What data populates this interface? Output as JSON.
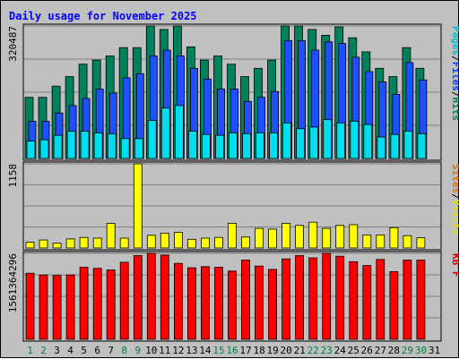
{
  "chart_data": [
    {
      "type": "bar",
      "title": "Daily usage for November 2025",
      "categories": [
        "1",
        "2",
        "3",
        "4",
        "5",
        "6",
        "7",
        "8",
        "9",
        "10",
        "11",
        "12",
        "13",
        "14",
        "15",
        "16",
        "17",
        "18",
        "19",
        "20",
        "21",
        "22",
        "23",
        "24",
        "25",
        "26",
        "27",
        "28",
        "29",
        "30",
        "31"
      ],
      "weekend_days": [
        "1",
        "2",
        "8",
        "9",
        "15",
        "16",
        "22",
        "23",
        "29",
        "30"
      ],
      "ylabel_parts": [
        {
          "text": "Pages",
          "color": "#00c0d0"
        },
        {
          "text": "Files",
          "color": "#0040ff"
        },
        {
          "text": "Hits",
          "color": "#008060"
        }
      ],
      "ymax_label": "320487",
      "ymax": 320487,
      "series": [
        {
          "name": "Hits",
          "color": "#00805c",
          "values": [
            148000,
            148000,
            175000,
            198000,
            228000,
            238000,
            248000,
            268000,
            268000,
            320487,
            312000,
            320487,
            270000,
            238000,
            248000,
            228000,
            198000,
            218000,
            238000,
            320487,
            320487,
            312000,
            298000,
            318000,
            292000,
            258000,
            218000,
            198000,
            268000,
            218000,
            0
          ]
        },
        {
          "name": "Files",
          "color": "#1e50ff",
          "values": [
            90000,
            90000,
            110000,
            128000,
            145000,
            168000,
            158000,
            195000,
            205000,
            248000,
            262000,
            248000,
            218000,
            192000,
            168000,
            168000,
            138000,
            148000,
            162000,
            285000,
            285000,
            262000,
            282000,
            278000,
            245000,
            210000,
            185000,
            155000,
            232000,
            190000,
            0
          ]
        },
        {
          "name": "Pages",
          "color": "#00ddee",
          "values": [
            42000,
            45000,
            56000,
            66000,
            66000,
            62000,
            60000,
            48000,
            48000,
            92000,
            122000,
            128000,
            66000,
            58000,
            56000,
            62000,
            60000,
            62000,
            62000,
            86000,
            72000,
            76000,
            94000,
            86000,
            90000,
            82000,
            52000,
            58000,
            66000,
            60000,
            0
          ]
        }
      ]
    },
    {
      "type": "bar",
      "ylabel_parts": [
        {
          "text": "Sites",
          "color": "#e07000"
        },
        {
          "text": "Visits",
          "color": "#e0e000"
        }
      ],
      "ymax_label": "1158",
      "ymax": 1158,
      "series": [
        {
          "name": "Visits",
          "color": "#ffff00",
          "values": [
            80,
            110,
            65,
            125,
            145,
            135,
            340,
            135,
            1158,
            175,
            205,
            215,
            120,
            135,
            145,
            340,
            150,
            270,
            260,
            340,
            310,
            355,
            270,
            310,
            320,
            180,
            180,
            280,
            170,
            140,
            0
          ]
        },
        {
          "name": "Sites",
          "color": "#ff8000",
          "values": [
            0,
            0,
            0,
            0,
            0,
            0,
            0,
            0,
            0,
            0,
            0,
            0,
            0,
            0,
            0,
            0,
            0,
            0,
            0,
            0,
            0,
            0,
            0,
            0,
            0,
            0,
            0,
            0,
            0,
            0,
            0
          ]
        }
      ]
    },
    {
      "type": "bar",
      "ylabel_parts": [
        {
          "text": "KB F",
          "color": "#e00000"
        }
      ],
      "ymax_label": "1561364296",
      "ymax": 1561364296,
      "series": [
        {
          "name": "KB F",
          "color": "#ff0000",
          "values": [
            1200000000,
            1170000000,
            1160000000,
            1170000000,
            1310000000,
            1290000000,
            1260000000,
            1400000000,
            1520000000,
            1561364296,
            1530000000,
            1380000000,
            1300000000,
            1320000000,
            1310000000,
            1240000000,
            1440000000,
            1330000000,
            1270000000,
            1460000000,
            1520000000,
            1480000000,
            1561364296,
            1510000000,
            1410000000,
            1340000000,
            1450000000,
            1230000000,
            1440000000,
            1440000000,
            0
          ]
        }
      ]
    }
  ],
  "colors": {
    "background": "#c0c0c0",
    "title": "#0000ff",
    "grid": "#808080",
    "weekday_label": "#000000",
    "weekend_label": "#008040"
  }
}
